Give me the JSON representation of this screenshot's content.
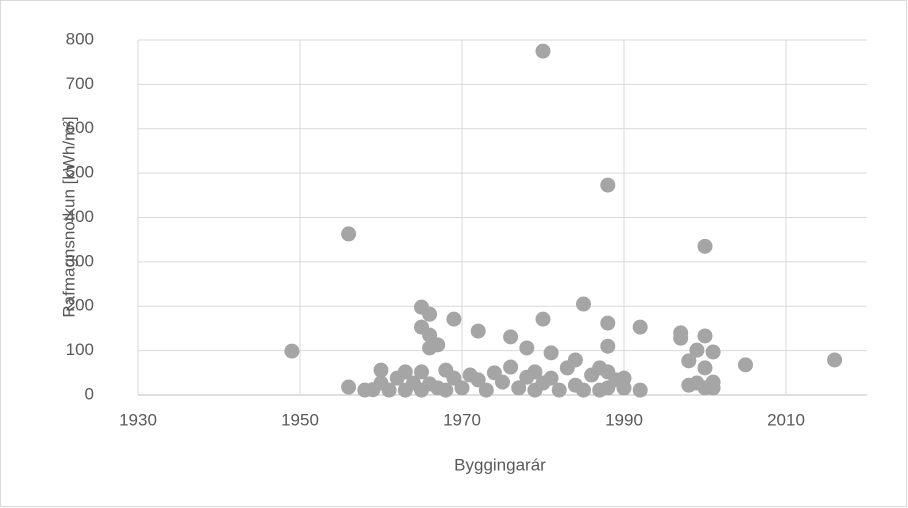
{
  "chart_data": {
    "type": "scatter",
    "xlabel": "Byggingarár",
    "ylabel": "Rafmagnsnotkun [kWh/m²]",
    "x": [
      1949,
      1956,
      1956,
      1980,
      1988,
      2000,
      1985,
      1980,
      1988,
      1992,
      1969,
      1972,
      1965,
      1966,
      1965,
      1966,
      1967,
      1966,
      1976,
      1978,
      1981,
      1988,
      1997,
      1997,
      2000,
      1999,
      2001,
      1998,
      2005,
      2016,
      2000,
      1960,
      1958,
      1959,
      1960,
      1961,
      1962,
      1963,
      1963,
      1964,
      1965,
      1965,
      1966,
      1967,
      1968,
      1968,
      1969,
      1970,
      1971,
      1972,
      1973,
      1974,
      1975,
      1976,
      1977,
      1978,
      1979,
      1979,
      1980,
      1981,
      1982,
      1983,
      1984,
      1984,
      1985,
      1986,
      1987,
      1987,
      1988,
      1988,
      1989,
      1990,
      1990,
      1992,
      1998,
      1999,
      2000,
      2001,
      2001
    ],
    "values": [
      99,
      363,
      18,
      775,
      473,
      335,
      205,
      171,
      162,
      153,
      171,
      144,
      198,
      182,
      153,
      135,
      113,
      106,
      131,
      106,
      95,
      110,
      140,
      128,
      133,
      101,
      97,
      77,
      68,
      79,
      61,
      56,
      11,
      12,
      27,
      11,
      38,
      52,
      11,
      27,
      52,
      11,
      25,
      16,
      56,
      11,
      38,
      16,
      45,
      34,
      11,
      50,
      29,
      63,
      16,
      40,
      52,
      11,
      27,
      38,
      11,
      61,
      79,
      22,
      11,
      45,
      61,
      11,
      52,
      16,
      34,
      38,
      16,
      11,
      22,
      27,
      16,
      29,
      16
    ],
    "color": "#a5a5a5",
    "xlim": [
      1930,
      2020
    ],
    "xticks": [
      1930,
      1950,
      1970,
      1990,
      2010
    ],
    "ylim": [
      0,
      800
    ],
    "yticks": [
      0,
      100,
      200,
      300,
      400,
      500,
      600,
      700,
      800
    ],
    "grid": true
  }
}
